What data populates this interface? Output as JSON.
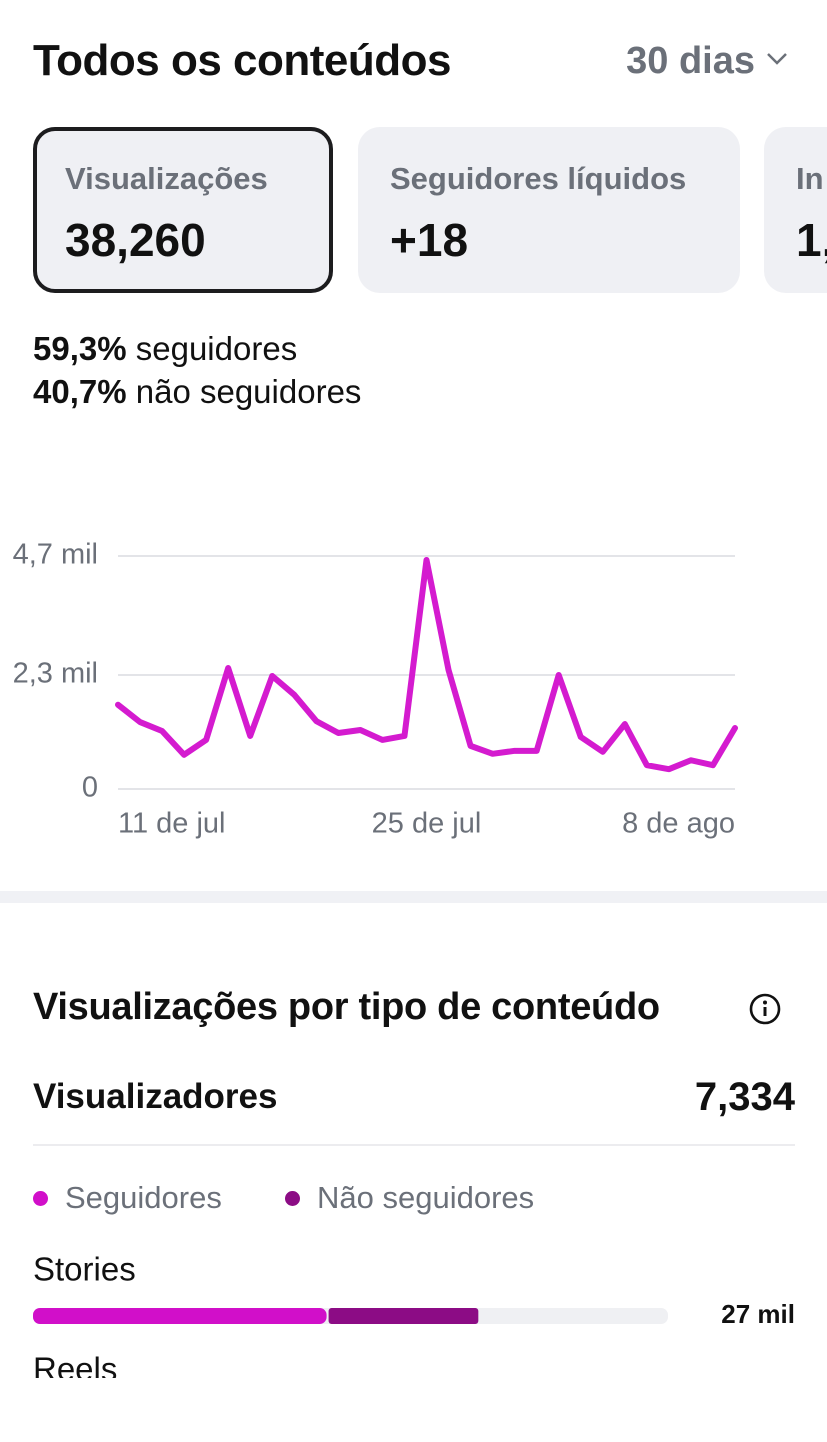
{
  "header": {
    "title": "Todos os conteúdos",
    "period": "30 dias"
  },
  "cards": [
    {
      "label": "Visualizações",
      "value": "38,260"
    },
    {
      "label": "Seguidores líquidos",
      "value": "+18"
    },
    {
      "label": "In",
      "value": "1,"
    }
  ],
  "audience": [
    {
      "percent": "59,3%",
      "label": "seguidores"
    },
    {
      "percent": "40,7%",
      "label": "não seguidores"
    }
  ],
  "section": {
    "title": "Visualizações por tipo de conteúdo",
    "viewers_label": "Visualizadores",
    "viewers_value": "7,334"
  },
  "chart_data": [
    {
      "type": "line",
      "categories": [
        "11 de jul",
        null,
        null,
        null,
        null,
        null,
        null,
        null,
        null,
        null,
        null,
        null,
        null,
        null,
        "25 de jul",
        null,
        null,
        null,
        null,
        null,
        null,
        null,
        null,
        null,
        null,
        null,
        null,
        null,
        "8 de ago"
      ],
      "values": [
        1700,
        1350,
        1170,
        690,
        990,
        2440,
        1070,
        2280,
        1900,
        1370,
        1130,
        1190,
        990,
        1070,
        4620,
        2400,
        870,
        710,
        770,
        770,
        2300,
        1050,
        750,
        1310,
        480,
        400,
        580,
        480,
        1230
      ],
      "color": "#d41bcf",
      "ylim": [
        0,
        4700
      ],
      "yticks": [
        0,
        {
          "value": 2300,
          "label": "2,3 mil"
        },
        {
          "value": 4700,
          "label": "4,7 mil"
        }
      ],
      "grid": true
    },
    {
      "type": "stacked-hbar",
      "categories": [
        "Stories",
        "Reels"
      ],
      "series": [
        {
          "name": "Seguidores",
          "color": "#d10fc9",
          "values": [
            17800,
            null
          ]
        },
        {
          "name": "Não seguidores",
          "color": "#8c0c85",
          "values": [
            9200,
            null
          ]
        }
      ],
      "totals": [
        27000,
        null
      ],
      "total_labels": [
        "27 mil",
        null
      ],
      "xlim": [
        0,
        38500
      ]
    }
  ]
}
